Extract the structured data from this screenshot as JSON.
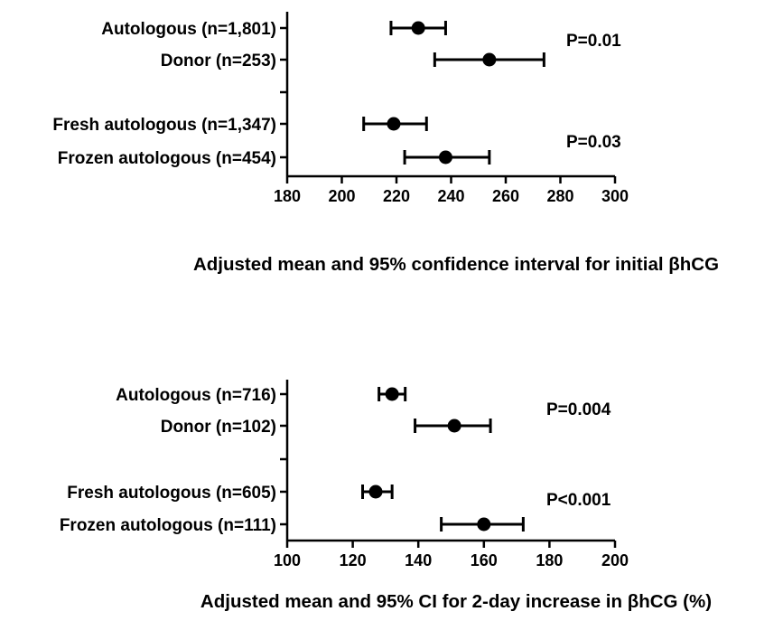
{
  "chart_data": [
    {
      "type": "forest",
      "title": "",
      "xlabel": "Adjusted mean and 95% confidence interval for initial βhCG",
      "ylabel": "",
      "xlim": [
        180,
        300
      ],
      "xticks": [
        "180",
        "200",
        "220",
        "240",
        "260",
        "280",
        "300"
      ],
      "grid": false,
      "categories": [
        "Autologous (n=1,801)",
        "Donor (n=253)",
        "",
        "Fresh autologous (n=1,347)",
        "Frozen autologous (n=454)"
      ],
      "rows": [
        {
          "label": "Autologous (n=1,801)",
          "mean": 228,
          "ci_low": 218,
          "ci_high": 238
        },
        {
          "label": "Donor (n=253)",
          "mean": 254,
          "ci_low": 234,
          "ci_high": 274
        },
        null,
        {
          "label": "Fresh autologous (n=1,347)",
          "mean": 219,
          "ci_low": 208,
          "ci_high": 231
        },
        {
          "label": "Frozen autologous (n=454)",
          "mean": 238,
          "ci_low": 223,
          "ci_high": 254
        }
      ],
      "p_values": [
        {
          "text": "P=0.01",
          "rows": [
            0,
            1
          ]
        },
        {
          "text": "P=0.03",
          "rows": [
            3,
            4
          ]
        }
      ]
    },
    {
      "type": "forest",
      "title": "",
      "xlabel": "Adjusted mean and 95% CI for 2-day increase in βhCG (%)",
      "ylabel": "",
      "xlim": [
        100,
        200
      ],
      "xticks": [
        "100",
        "120",
        "140",
        "160",
        "180",
        "200"
      ],
      "grid": false,
      "categories": [
        "Autologous (n=716)",
        "Donor (n=102)",
        "",
        "Fresh autologous (n=605)",
        "Frozen autologous (n=111)"
      ],
      "rows": [
        {
          "label": "Autologous (n=716)",
          "mean": 132,
          "ci_low": 128,
          "ci_high": 136
        },
        {
          "label": "Donor (n=102)",
          "mean": 151,
          "ci_low": 139,
          "ci_high": 162
        },
        null,
        {
          "label": "Fresh autologous (n=605)",
          "mean": 127,
          "ci_low": 123,
          "ci_high": 132
        },
        {
          "label": "Frozen autologous (n=111)",
          "mean": 160,
          "ci_low": 147,
          "ci_high": 172
        }
      ],
      "p_values": [
        {
          "text": "P=0.004",
          "rows": [
            0,
            1
          ]
        },
        {
          "text": "P<0.001",
          "rows": [
            3,
            4
          ]
        }
      ]
    }
  ]
}
